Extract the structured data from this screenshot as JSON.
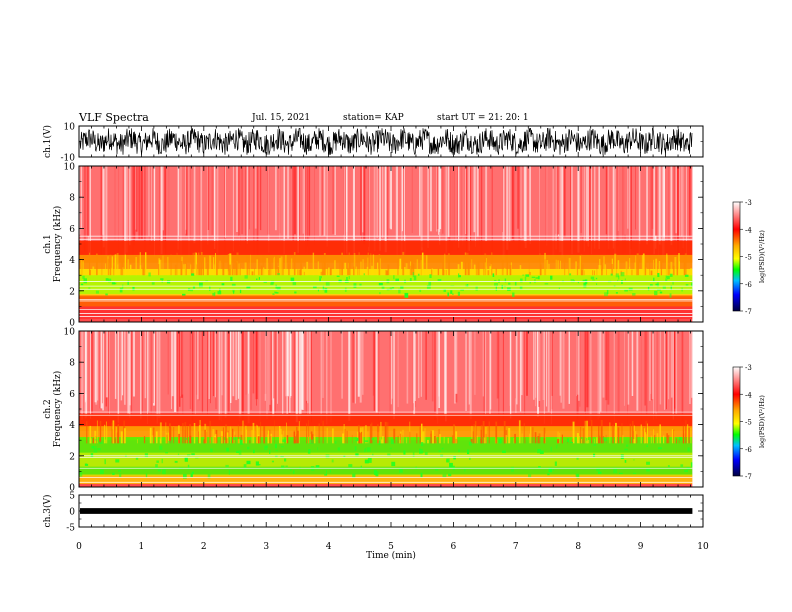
{
  "header": {
    "title": "VLF Spectra",
    "date": "Jul. 15, 2021",
    "station": "station= KAP",
    "start": "start  UT =  21: 20: 1"
  },
  "chart_data": [
    {
      "type": "line",
      "panel": "ch1-waveform",
      "ylabel": "ch.1(V)",
      "ylim": [
        -10,
        10
      ],
      "y_ticks": [
        "10",
        "-10"
      ],
      "xlim": [
        0,
        10
      ],
      "note_series": "dense waveform fluctuating roughly between -8 and 8 V from 0 to ~9.8 min"
    },
    {
      "type": "heatmap",
      "panel": "ch1-spectrogram",
      "ylabel_top": "ch.1",
      "ylabel": "Frequency (kHz)",
      "ylim": [
        0,
        10
      ],
      "y_ticks": [
        "0",
        "2",
        "4",
        "6",
        "8",
        "10"
      ],
      "xlim": [
        0,
        10
      ],
      "colorbar": {
        "label": "log(PSD)(V²/Hz)",
        "range": [
          -7,
          -3
        ],
        "ticks": [
          "-3",
          "-4",
          "-5",
          "-6",
          "-7"
        ]
      }
    },
    {
      "type": "heatmap",
      "panel": "ch2-spectrogram",
      "ylabel_top": "ch.2",
      "ylabel": "Frequency (kHz)",
      "ylim": [
        0,
        10
      ],
      "y_ticks": [
        "0",
        "2",
        "4",
        "6",
        "8",
        "10"
      ],
      "xlim": [
        0,
        10
      ],
      "colorbar": {
        "label": "log(PSD)(V²/Hz)",
        "range": [
          -7,
          -3
        ],
        "ticks": [
          "-3",
          "-4",
          "-5",
          "-6",
          "-7"
        ]
      }
    },
    {
      "type": "line",
      "panel": "ch3-waveform",
      "ylabel": "ch.3(V)",
      "ylim": [
        -5,
        5
      ],
      "y_ticks": [
        "5",
        "0",
        "-5"
      ],
      "xlim": [
        0,
        10
      ],
      "xlabel": "Time (min)",
      "x_ticks": [
        "0",
        "1",
        "2",
        "3",
        "4",
        "5",
        "6",
        "7",
        "8",
        "9",
        "10"
      ]
    }
  ],
  "colors": {
    "axis": "#000000",
    "psd_high": "#ff0000",
    "psd_mid": "#ffff00",
    "psd_low": "#00ff00",
    "psd_lowest": "#000080"
  }
}
